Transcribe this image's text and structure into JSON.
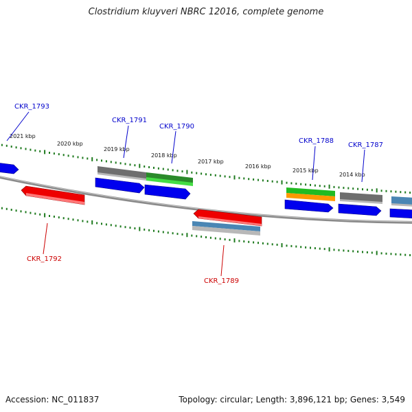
{
  "title": "Clostridium kluyveri NBRC 12016, complete genome",
  "footer": {
    "accession": "Accession: NC_011837",
    "summary": "Topology: circular; Length: 3,896,121 bp; Genes: 3,549"
  },
  "colors": {
    "backbone": "#808080",
    "ticks": "#1e7a1e",
    "label_forward": "#0000cc",
    "label_reverse": "#cc0000",
    "blue": "#0000ee",
    "red": "#ee0000",
    "gray": "#6e6e6e",
    "green": "#22bb22",
    "orange": "#ff9900",
    "steelblue": "#4a86b4",
    "lightgray": "#b8b8b8"
  },
  "kbp_labels": [
    "2021 kbp",
    "2020 kbp",
    "2019 kbp",
    "2018 kbp",
    "2017 kbp",
    "2016 kbp",
    "2015 kbp",
    "2014 kbp"
  ],
  "gene_labels": {
    "forward": [
      "CKR_1793",
      "CKR_1791",
      "CKR_1790",
      "CKR_1788",
      "CKR_1787"
    ],
    "reverse": [
      "CKR_1792",
      "CKR_1789"
    ]
  }
}
